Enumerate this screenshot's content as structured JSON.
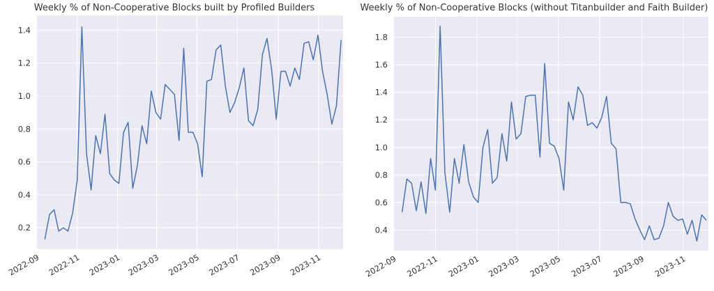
{
  "chart_data": [
    {
      "type": "line",
      "title": "Weekly % of Non-Cooperative Blocks built by Profiled Builders",
      "xlabel": "",
      "ylabel": "",
      "x_start": "2022-09-13",
      "x_step_days": 7,
      "x_ticks": [
        "2022-09",
        "2022-11",
        "2023-01",
        "2023-03",
        "2023-05",
        "2023-07",
        "2023-09",
        "2023-11"
      ],
      "y_ticks": [
        "0.2",
        "0.4",
        "0.6",
        "0.8",
        "1.0",
        "1.2",
        "1.4"
      ],
      "xlim": [
        "2022-08-31",
        "2023-12-08"
      ],
      "ylim": [
        0.07,
        1.49
      ],
      "grid": true,
      "line_color": "#4c72b0",
      "background": "#eaeaf2",
      "values": [
        0.13,
        0.28,
        0.31,
        0.18,
        0.2,
        0.18,
        0.29,
        0.49,
        1.42,
        0.65,
        0.43,
        0.76,
        0.65,
        0.89,
        0.53,
        0.49,
        0.47,
        0.78,
        0.84,
        0.44,
        0.58,
        0.82,
        0.71,
        1.03,
        0.9,
        0.86,
        1.07,
        1.04,
        1.01,
        0.73,
        1.29,
        0.78,
        0.78,
        0.71,
        0.51,
        1.09,
        1.1,
        1.28,
        1.31,
        1.06,
        0.9,
        0.96,
        1.05,
        1.17,
        0.85,
        0.82,
        0.92,
        1.25,
        1.35,
        1.16,
        0.86,
        1.15,
        1.15,
        1.06,
        1.17,
        1.1,
        1.32,
        1.33,
        1.22,
        1.37,
        1.15,
        1.01,
        0.83,
        0.94,
        1.34
      ]
    },
    {
      "type": "line",
      "title": "Weekly % of Non-Cooperative Blocks (without Titanbuilder and Faith Builder)",
      "xlabel": "",
      "ylabel": "",
      "x_start": "2022-09-13",
      "x_step_days": 7,
      "x_ticks": [
        "2022-09",
        "2022-11",
        "2023-01",
        "2023-03",
        "2023-05",
        "2023-07",
        "2023-09",
        "2023-11"
      ],
      "y_ticks": [
        "0.4",
        "0.6",
        "0.8",
        "1.0",
        "1.2",
        "1.4",
        "1.6",
        "1.8"
      ],
      "xlim": [
        "2022-08-31",
        "2023-12-08"
      ],
      "ylim": [
        0.25,
        1.95
      ],
      "grid": true,
      "line_color": "#4c72b0",
      "background": "#eaeaf2",
      "values": [
        0.53,
        0.77,
        0.74,
        0.54,
        0.75,
        0.52,
        0.92,
        0.69,
        1.88,
        0.82,
        0.53,
        0.92,
        0.74,
        1.02,
        0.75,
        0.64,
        0.6,
        1.0,
        1.13,
        0.74,
        0.78,
        1.1,
        0.9,
        1.33,
        1.06,
        1.1,
        1.37,
        1.38,
        1.38,
        0.93,
        1.61,
        1.03,
        1.01,
        0.92,
        0.69,
        1.33,
        1.2,
        1.44,
        1.38,
        1.16,
        1.18,
        1.14,
        1.22,
        1.37,
        1.03,
        0.99,
        0.6,
        0.6,
        0.59,
        0.48,
        0.4,
        0.33,
        0.43,
        0.33,
        0.34,
        0.43,
        0.6,
        0.5,
        0.47,
        0.48,
        0.37,
        0.47,
        0.32,
        0.51,
        0.47
      ]
    }
  ]
}
